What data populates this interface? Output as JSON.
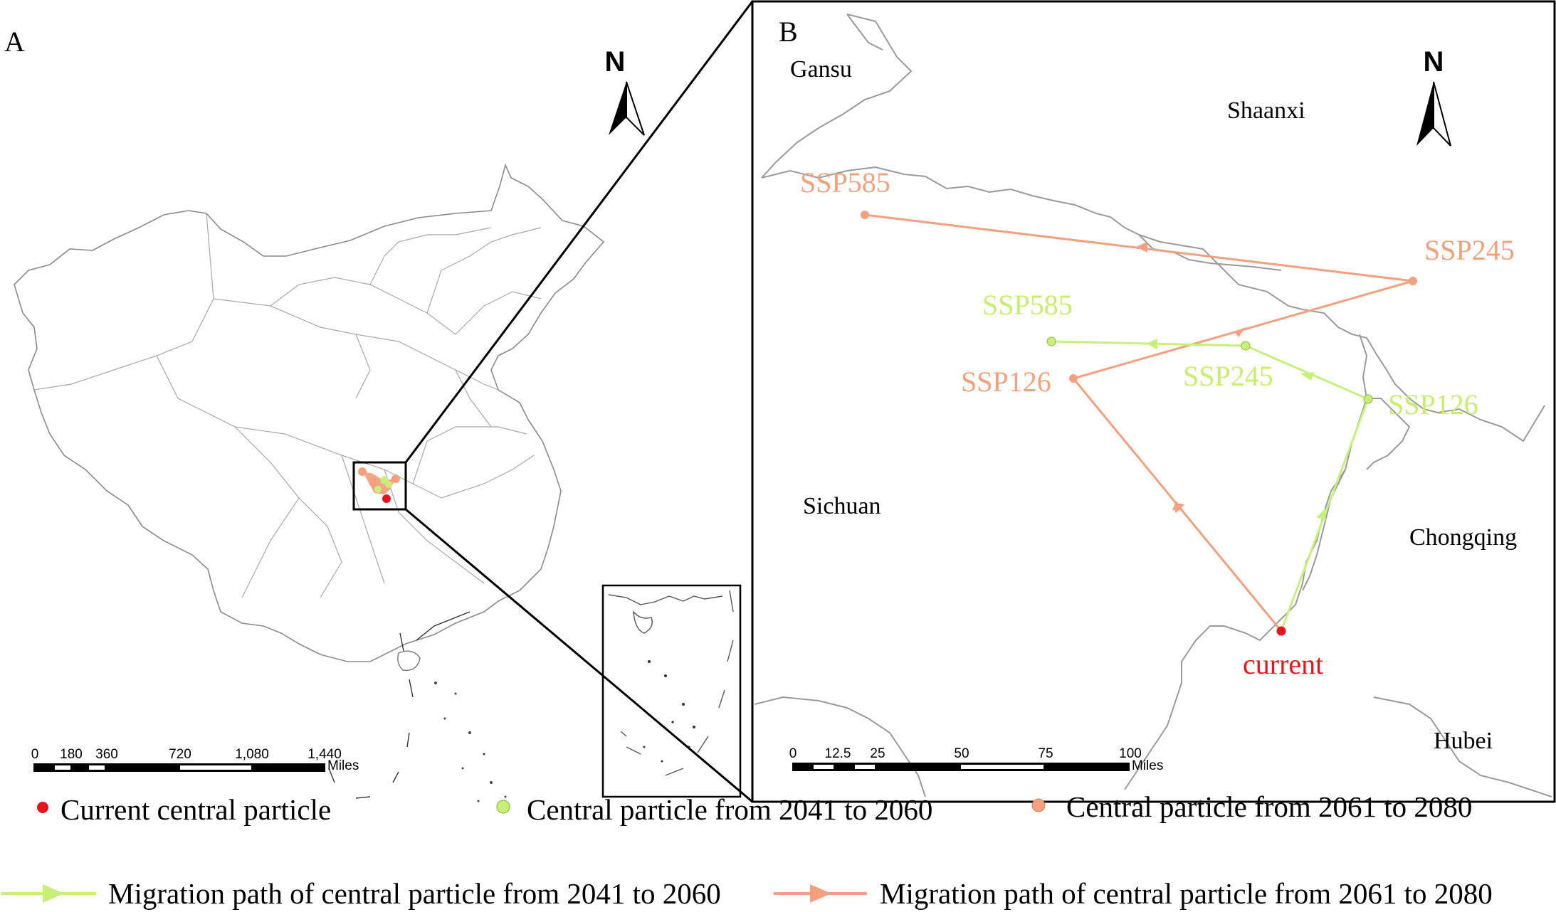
{
  "panel_a": {
    "label": "A",
    "north": "N",
    "scale": {
      "ticks": [
        "0",
        "180",
        "360",
        "720",
        "1,080",
        "1,440"
      ],
      "unit": "Miles"
    }
  },
  "panel_b": {
    "label": "B",
    "north": "N",
    "regions": [
      "Gansu",
      "Shaanxi",
      "Sichuan",
      "Chongqing",
      "Hubei"
    ],
    "points": {
      "current": "current",
      "green": [
        "SSP126",
        "SSP245",
        "SSP585"
      ],
      "orange": [
        "SSP126",
        "SSP245",
        "SSP585"
      ]
    },
    "scale": {
      "ticks": [
        "0",
        "12.5",
        "25",
        "50",
        "75",
        "100"
      ],
      "unit": "Miles"
    }
  },
  "legend": {
    "current": "Current central particle",
    "green_point": "Central particle from 2041 to 2060",
    "orange_point": "Central particle from 2061 to 2080",
    "green_path": "Migration path of central particle from 2041 to 2060",
    "orange_path": "Migration path of central particle from 2061 to 2080"
  },
  "colors": {
    "current": "#e8141c",
    "green": "#c7f07a",
    "green_text": "#c7ef6e",
    "orange": "#f4a07e",
    "orange_text": "#f3a07c",
    "boundary": "#9a9a9a"
  }
}
